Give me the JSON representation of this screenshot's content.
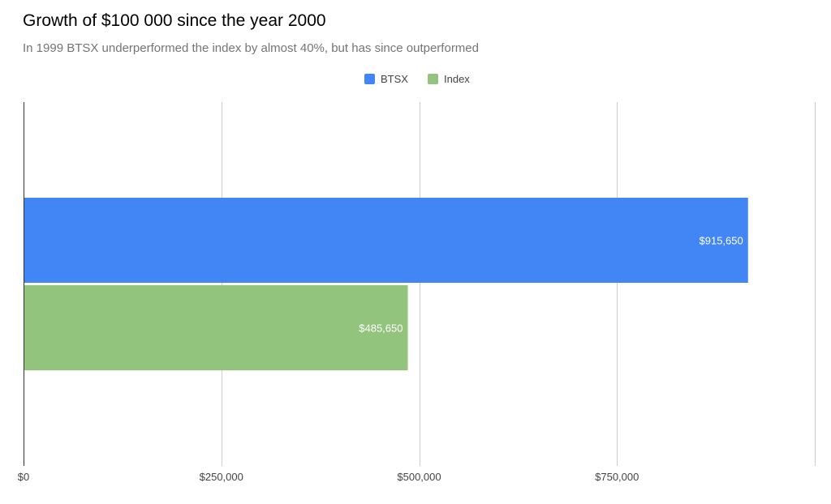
{
  "chart_data": {
    "type": "bar",
    "orientation": "horizontal",
    "title": "Growth of $100 000 since the year 2000",
    "subtitle": "In 1999 BTSX underperformed the index by almost 40%, but has since outperformed",
    "categories": [
      ""
    ],
    "series": [
      {
        "name": "BTSX",
        "values": [
          915650
        ],
        "labels": [
          "$915,650"
        ],
        "color": "#4285f4"
      },
      {
        "name": "Index",
        "values": [
          485650
        ],
        "labels": [
          "$485,650"
        ],
        "color": "#93c47d"
      }
    ],
    "xlim": [
      0,
      1000000
    ],
    "xticks": [
      0,
      250000,
      500000,
      750000
    ],
    "xtick_labels": [
      "$0",
      "$250,000",
      "$500,000",
      "$750,000"
    ],
    "grid": true,
    "legend_position": "top"
  }
}
